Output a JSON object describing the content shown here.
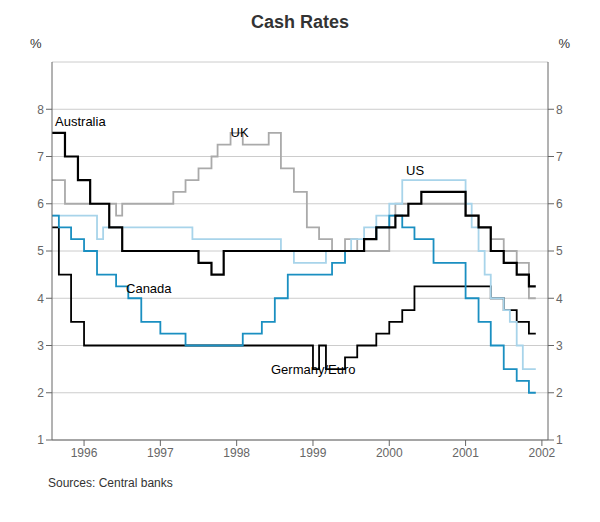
{
  "chart_data": {
    "type": "line",
    "title": "Cash Rates",
    "ylabel": "%",
    "y2label": "%",
    "xlim": [
      1995.58,
      2002.08
    ],
    "xticks": [
      1996,
      1997,
      1998,
      1999,
      2000,
      2001,
      2002
    ],
    "ylim": [
      1.0,
      9.0
    ],
    "yticks": [
      1,
      2,
      3,
      4,
      5,
      6,
      7,
      8
    ],
    "y2lim": [
      1.0,
      9.0
    ],
    "y2ticks": [
      1,
      2,
      3,
      4,
      5,
      6,
      7,
      8
    ],
    "grid": true,
    "series": [
      {
        "name": "UK",
        "color": "#aaaaaa",
        "x": [
          1995.58,
          1995.75,
          1995.75,
          1996.42,
          1996.42,
          1996.5,
          1996.5,
          1997.17,
          1997.17,
          1997.33,
          1997.33,
          1997.5,
          1997.5,
          1997.67,
          1997.67,
          1997.75,
          1997.75,
          1997.92,
          1997.92,
          1998.08,
          1998.08,
          1998.42,
          1998.42,
          1998.58,
          1998.58,
          1998.75,
          1998.75,
          1998.92,
          1998.92,
          1999.08,
          1999.08,
          1999.25,
          1999.25,
          1999.42,
          1999.42,
          1999.58,
          1999.58,
          2000.0,
          2000.0,
          2000.08,
          2000.08,
          2000.17,
          2000.17,
          2001.0,
          2001.0,
          2001.17,
          2001.17,
          2001.33,
          2001.33,
          2001.5,
          2001.5,
          2001.67,
          2001.67,
          2001.83,
          2001.83,
          2001.92
        ],
        "values": [
          6.5,
          6.5,
          6.0,
          6.0,
          5.75,
          5.75,
          6.0,
          6.0,
          6.25,
          6.25,
          6.5,
          6.5,
          6.75,
          6.75,
          7.0,
          7.0,
          7.25,
          7.25,
          7.5,
          7.5,
          7.25,
          7.25,
          7.5,
          7.5,
          6.75,
          6.75,
          6.25,
          6.25,
          5.5,
          5.5,
          5.25,
          5.25,
          5.0,
          5.0,
          5.25,
          5.25,
          5.0,
          5.0,
          5.75,
          5.75,
          6.0,
          6.0,
          6.0,
          6.0,
          5.75,
          5.75,
          5.5,
          5.5,
          5.25,
          5.25,
          5.0,
          5.0,
          4.75,
          4.75,
          4.0,
          4.0
        ]
      },
      {
        "name": "Germany/Euro",
        "color": "#000000",
        "x": [
          1995.58,
          1995.67,
          1995.67,
          1995.83,
          1995.83,
          1996.0,
          1996.0,
          1996.25,
          1996.25,
          1996.5,
          1996.5,
          1996.67,
          1996.67,
          1997.0,
          1997.0,
          1999.0,
          1999.0,
          1999.08,
          1999.08,
          1999.17,
          1999.17,
          1999.42,
          1999.42,
          1999.58,
          1999.58,
          1999.83,
          1999.83,
          2000.0,
          2000.0,
          2000.17,
          2000.17,
          2000.33,
          2000.33,
          2000.5,
          2000.5,
          2001.33,
          2001.33,
          2001.5,
          2001.5,
          2001.67,
          2001.67,
          2001.83,
          2001.83,
          2001.92
        ],
        "values": [
          5.5,
          5.5,
          4.5,
          4.5,
          3.5,
          3.5,
          3.0,
          3.0,
          3.0,
          3.0,
          3.0,
          3.0,
          3.0,
          3.0,
          3.0,
          3.0,
          2.5,
          2.5,
          3.0,
          3.0,
          2.5,
          2.5,
          2.75,
          2.75,
          3.0,
          3.0,
          3.25,
          3.25,
          3.5,
          3.5,
          3.75,
          3.75,
          4.25,
          4.25,
          4.25,
          4.25,
          4.0,
          4.0,
          3.75,
          3.75,
          3.5,
          3.5,
          3.25,
          3.25
        ]
      },
      {
        "name": "US",
        "color": "#a8d4ea",
        "x": [
          1995.58,
          1996.17,
          1996.17,
          1996.25,
          1996.25,
          1997.33,
          1997.33,
          1997.42,
          1997.42,
          1998.58,
          1998.58,
          1998.75,
          1998.75,
          1998.92,
          1998.92,
          1999.17,
          1999.17,
          1999.5,
          1999.5,
          1999.67,
          1999.67,
          1999.83,
          1999.83,
          2000.0,
          2000.0,
          2000.17,
          2000.17,
          2000.5,
          2000.5,
          2001.0,
          2001.0,
          2001.08,
          2001.08,
          2001.17,
          2001.17,
          2001.25,
          2001.25,
          2001.33,
          2001.33,
          2001.5,
          2001.5,
          2001.58,
          2001.58,
          2001.67,
          2001.67,
          2001.75,
          2001.75,
          2001.92
        ],
        "values": [
          5.75,
          5.75,
          5.25,
          5.25,
          5.5,
          5.5,
          5.5,
          5.5,
          5.25,
          5.25,
          5.0,
          5.0,
          4.75,
          4.75,
          4.75,
          4.75,
          5.0,
          5.0,
          5.25,
          5.25,
          5.5,
          5.5,
          5.75,
          5.75,
          6.0,
          6.0,
          6.5,
          6.5,
          6.5,
          6.5,
          6.0,
          6.0,
          5.5,
          5.5,
          5.0,
          5.0,
          4.5,
          4.5,
          4.0,
          4.0,
          3.75,
          3.75,
          3.5,
          3.5,
          3.0,
          3.0,
          2.5,
          2.5
        ]
      },
      {
        "name": "Canada",
        "color": "#1a8fc1",
        "x": [
          1995.58,
          1995.67,
          1995.67,
          1995.83,
          1995.83,
          1996.0,
          1996.0,
          1996.17,
          1996.17,
          1996.42,
          1996.42,
          1996.58,
          1996.58,
          1996.75,
          1996.75,
          1997.0,
          1997.0,
          1997.33,
          1997.33,
          1998.08,
          1998.08,
          1998.33,
          1998.33,
          1998.5,
          1998.5,
          1998.67,
          1998.67,
          1999.25,
          1999.25,
          1999.42,
          1999.42,
          1999.67,
          1999.67,
          1999.83,
          1999.83,
          2000.0,
          2000.0,
          2000.17,
          2000.17,
          2000.33,
          2000.33,
          2000.58,
          2000.58,
          2001.0,
          2001.0,
          2001.17,
          2001.17,
          2001.33,
          2001.33,
          2001.5,
          2001.5,
          2001.67,
          2001.67,
          2001.83,
          2001.83,
          2001.92
        ],
        "values": [
          5.75,
          5.75,
          5.5,
          5.5,
          5.25,
          5.25,
          5.0,
          5.0,
          4.5,
          4.5,
          4.25,
          4.25,
          4.0,
          4.0,
          3.5,
          3.5,
          3.25,
          3.25,
          3.0,
          3.0,
          3.25,
          3.25,
          3.5,
          3.5,
          4.0,
          4.0,
          4.5,
          4.5,
          4.75,
          4.75,
          5.0,
          5.0,
          5.25,
          5.25,
          5.5,
          5.5,
          5.75,
          5.75,
          5.5,
          5.5,
          5.25,
          5.25,
          4.75,
          4.75,
          4.0,
          4.0,
          3.5,
          3.5,
          3.0,
          3.0,
          2.5,
          2.5,
          2.25,
          2.25,
          2.0,
          2.0
        ]
      },
      {
        "name": "Australia",
        "color": "#000000",
        "x": [
          1995.58,
          1995.75,
          1995.75,
          1995.92,
          1995.92,
          1996.08,
          1996.08,
          1996.33,
          1996.33,
          1996.5,
          1996.5,
          1996.75,
          1996.75,
          1997.0,
          1997.0,
          1997.5,
          1997.5,
          1997.67,
          1997.67,
          1997.83,
          1997.83,
          1998.08,
          1998.08,
          1998.42,
          1998.42,
          1999.67,
          1999.67,
          1999.83,
          1999.83,
          2000.08,
          2000.08,
          2000.25,
          2000.25,
          2000.42,
          2000.42,
          2001.0,
          2001.0,
          2001.17,
          2001.17,
          2001.33,
          2001.33,
          2001.5,
          2001.5,
          2001.67,
          2001.67,
          2001.83,
          2001.83,
          2001.92
        ],
        "values": [
          7.5,
          7.5,
          7.0,
          7.0,
          6.5,
          6.5,
          6.0,
          6.0,
          5.5,
          5.5,
          5.0,
          5.0,
          5.0,
          5.0,
          5.0,
          5.0,
          4.75,
          4.75,
          4.5,
          4.5,
          5.0,
          5.0,
          5.0,
          5.0,
          5.0,
          5.0,
          5.25,
          5.25,
          5.5,
          5.5,
          5.75,
          5.75,
          6.0,
          6.0,
          6.25,
          6.25,
          5.75,
          5.75,
          5.5,
          5.5,
          5.0,
          5.0,
          4.75,
          4.75,
          4.5,
          4.5,
          4.25,
          4.25
        ]
      }
    ],
    "annotations": [
      {
        "text": "Australia",
        "x": 1995.62,
        "y": 7.9
      },
      {
        "text": "UK",
        "x": 1997.92,
        "y": 7.65
      },
      {
        "text": "US",
        "x": 2000.22,
        "y": 6.85
      },
      {
        "text": "Canada",
        "x": 1996.55,
        "y": 4.35
      },
      {
        "text": "Germany/Euro",
        "x": 1998.45,
        "y": 2.65
      },
      {
        "text": "Sources: Central banks"
      }
    ]
  }
}
